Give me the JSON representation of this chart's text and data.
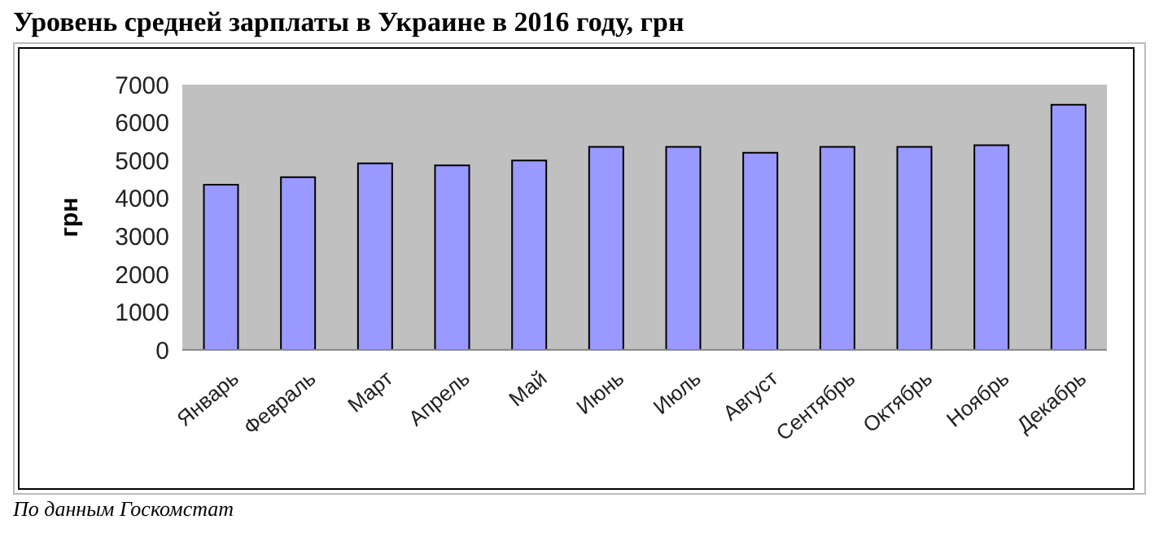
{
  "chart_data": {
    "type": "bar",
    "title": "Уровень средней зарплаты в Украине в 2016 году, грн",
    "ylabel": "грн",
    "categories": [
      "Январь",
      "Февраль",
      "Март",
      "Апрель",
      "Май",
      "Июнь",
      "Июль",
      "Август",
      "Сентябрь",
      "Октябрь",
      "Ноябрь",
      "Декабрь"
    ],
    "values": [
      4360,
      4560,
      4920,
      4870,
      5000,
      5360,
      5360,
      5200,
      5360,
      5360,
      5400,
      6470
    ],
    "color": "#9999ff",
    "ylim": [
      0,
      7000
    ],
    "yticks": [
      0,
      1000,
      2000,
      3000,
      4000,
      5000,
      6000,
      7000
    ],
    "grid": false,
    "legend": false,
    "annotations": [
      "По данным Госкомстат"
    ]
  }
}
